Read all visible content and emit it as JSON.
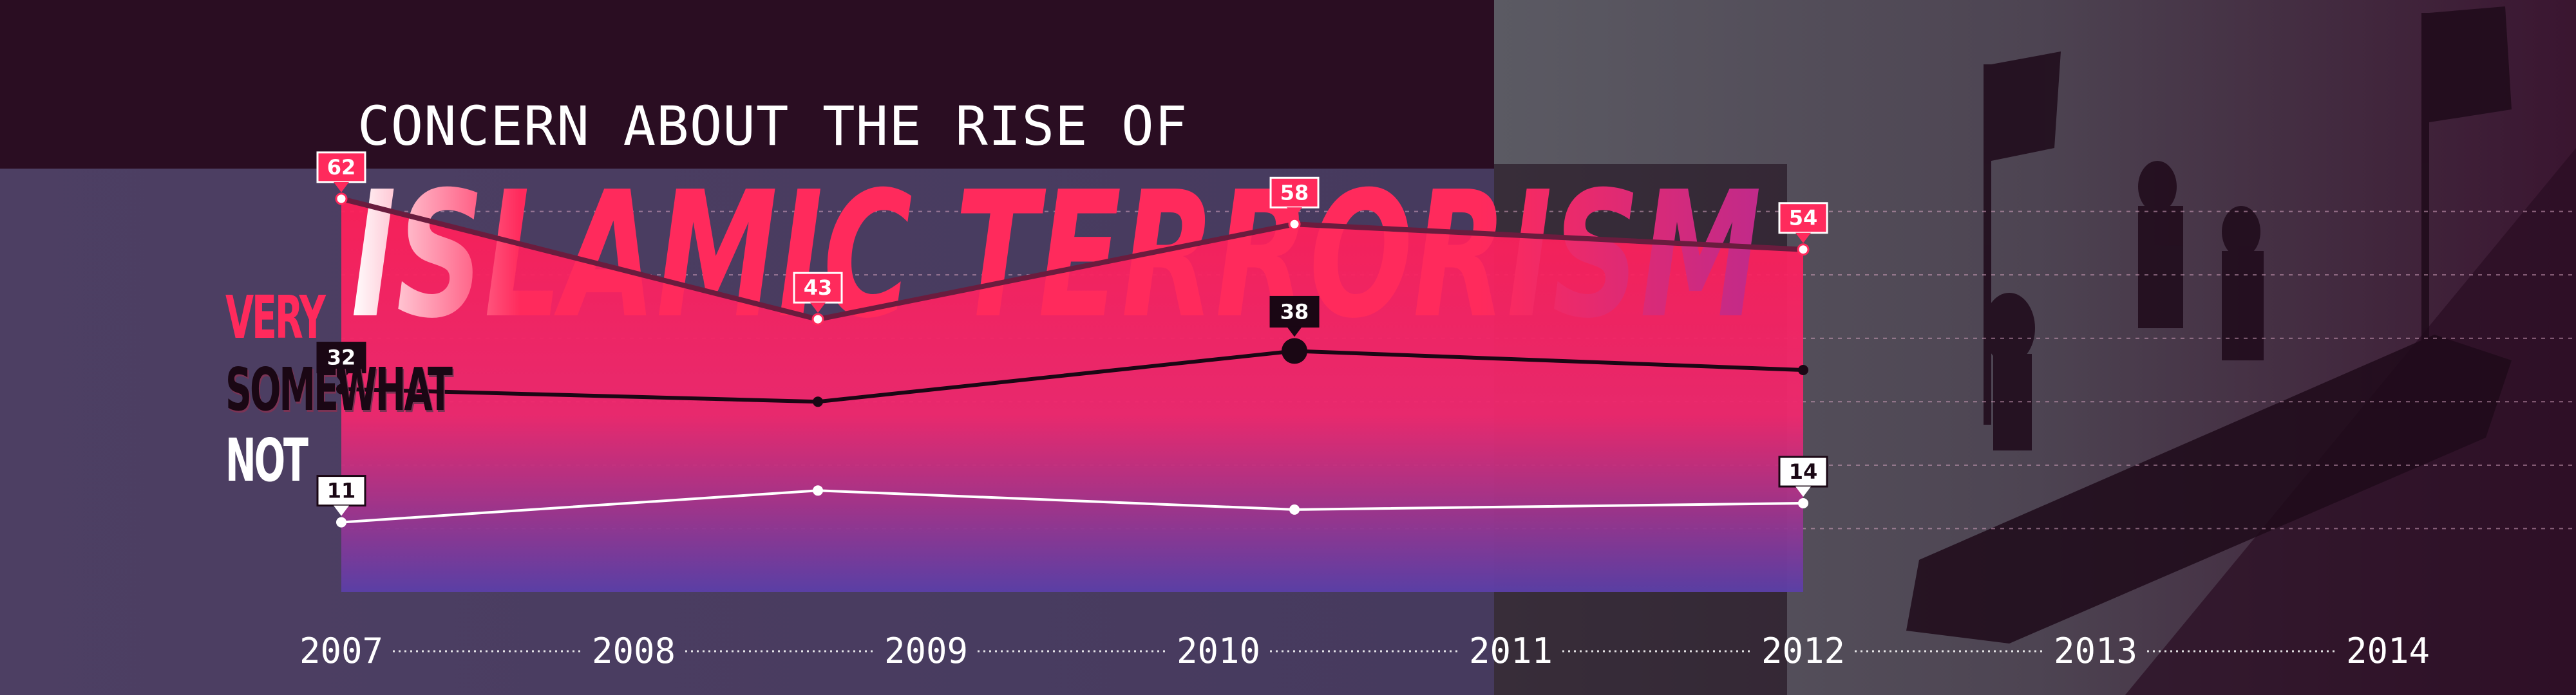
{
  "colors": {
    "very": "#ff2a5c",
    "somewhat": "#1a0714",
    "not": "#ffffff",
    "grid": "#d8a6c2",
    "axis_text": "#ffffff"
  },
  "chart_data": {
    "type": "line",
    "title": "CONCERN ABOUT THE RISE OF",
    "subtitle": "ISLAMIC TERRORISM",
    "x": [
      "2007",
      "2008",
      "2009",
      "2010",
      "2011",
      "2012",
      "2013",
      "2014"
    ],
    "series": [
      {
        "name": "VERY",
        "key": "very",
        "points": [
          {
            "x": 2007.0,
            "y": 62,
            "label": "62"
          },
          {
            "x": 2008.63,
            "y": 43,
            "label": "43"
          },
          {
            "x": 2010.26,
            "y": 58,
            "label": "58"
          },
          {
            "x": 2012.0,
            "y": 54,
            "label": "54"
          }
        ]
      },
      {
        "name": "SOMEWHAT",
        "key": "somewhat",
        "points": [
          {
            "x": 2007.0,
            "y": 32,
            "label": "32"
          },
          {
            "x": 2008.63,
            "y": 30,
            "label": ""
          },
          {
            "x": 2010.26,
            "y": 38,
            "label": "38"
          },
          {
            "x": 2012.0,
            "y": 35,
            "label": ""
          }
        ]
      },
      {
        "name": "NOT",
        "key": "not",
        "points": [
          {
            "x": 2007.0,
            "y": 11,
            "label": "11"
          },
          {
            "x": 2008.63,
            "y": 16,
            "label": ""
          },
          {
            "x": 2010.26,
            "y": 13,
            "label": ""
          },
          {
            "x": 2012.0,
            "y": 14,
            "label": "14"
          }
        ]
      }
    ],
    "xlim": [
      2007,
      2014
    ],
    "ylim": [
      0,
      70
    ],
    "grid": true,
    "legend_position": "left"
  }
}
